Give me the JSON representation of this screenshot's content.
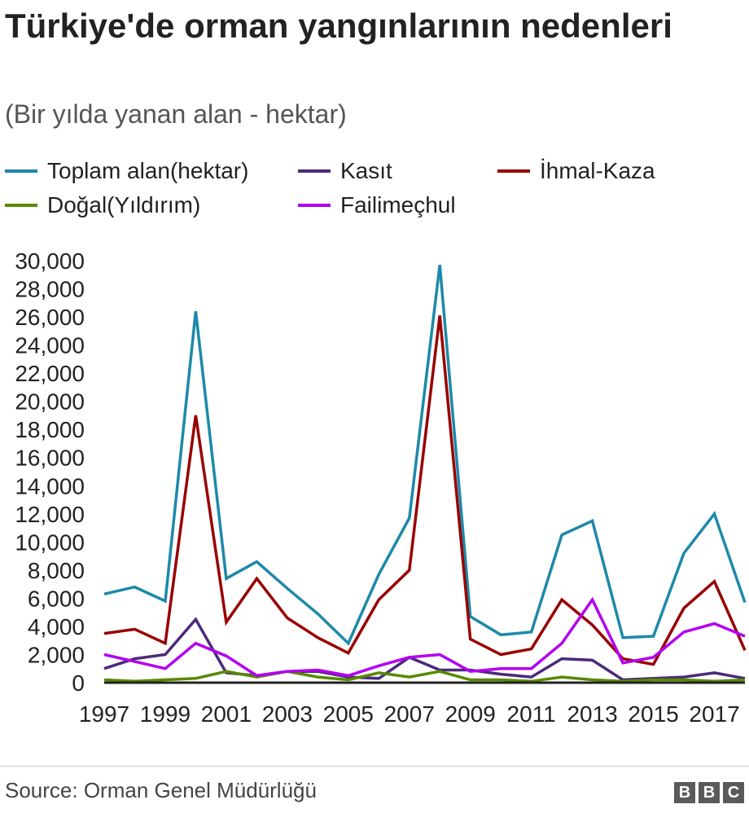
{
  "chart_data": {
    "type": "line",
    "title": "Türkiye'de orman yangınlarının nedenleri",
    "subtitle": "(Bir yılda yanan alan - hektar)",
    "x": [
      1997,
      1998,
      1999,
      2000,
      2001,
      2002,
      2003,
      2004,
      2005,
      2006,
      2007,
      2008,
      2009,
      2010,
      2011,
      2012,
      2013,
      2014,
      2015,
      2016,
      2017,
      2018
    ],
    "x_tick_labels": [
      "1997",
      "1999",
      "2001",
      "2003",
      "2005",
      "2007",
      "2009",
      "2011",
      "2013",
      "2015",
      "2017"
    ],
    "y_tick_labels": [
      "0",
      "2,000",
      "4,000",
      "6,000",
      "8,000",
      "10,000",
      "12,000",
      "14,000",
      "16,000",
      "18,000",
      "20,000",
      "22,000",
      "24,000",
      "26,000",
      "28,000",
      "30,000"
    ],
    "ylim": [
      0,
      30000
    ],
    "xlabel": "",
    "ylabel": "",
    "grid": false,
    "legend_position": "top",
    "series": [
      {
        "name": "Toplam alan(hektar)",
        "color": "#1d89a8",
        "values": [
          6300,
          6800,
          5800,
          26400,
          7400,
          8600,
          6700,
          4900,
          2800,
          7700,
          11700,
          29700,
          4700,
          3400,
          3600,
          10500,
          11500,
          3200,
          3300,
          9200,
          12000,
          5700
        ]
      },
      {
        "name": "Kasıt",
        "color": "#4b2a7a",
        "values": [
          1000,
          1700,
          2000,
          4500,
          700,
          500,
          800,
          800,
          400,
          300,
          1800,
          900,
          900,
          600,
          400,
          1700,
          1600,
          200,
          300,
          400,
          700,
          300
        ]
      },
      {
        "name": "İhmal-Kaza",
        "color": "#990000",
        "values": [
          3500,
          3800,
          2800,
          19000,
          4300,
          7400,
          4600,
          3200,
          2100,
          5900,
          8000,
          26100,
          3100,
          2000,
          2400,
          5900,
          4100,
          1700,
          1300,
          5300,
          7200,
          2300
        ]
      },
      {
        "name": "Doğal(Yıldırım)",
        "color": "#588a00",
        "values": [
          200,
          100,
          200,
          300,
          800,
          400,
          800,
          400,
          200,
          700,
          400,
          800,
          200,
          200,
          100,
          400,
          200,
          100,
          200,
          200,
          100,
          200
        ]
      },
      {
        "name": "Failimeçhul",
        "color": "#b400f0",
        "values": [
          2000,
          1500,
          1000,
          2800,
          1900,
          500,
          800,
          900,
          500,
          1200,
          1800,
          2000,
          800,
          1000,
          1000,
          2800,
          5900,
          1400,
          1800,
          3600,
          4200,
          3300
        ]
      }
    ],
    "source": "Source: Orman Genel Müdürlüğü",
    "logo": "BBC"
  }
}
